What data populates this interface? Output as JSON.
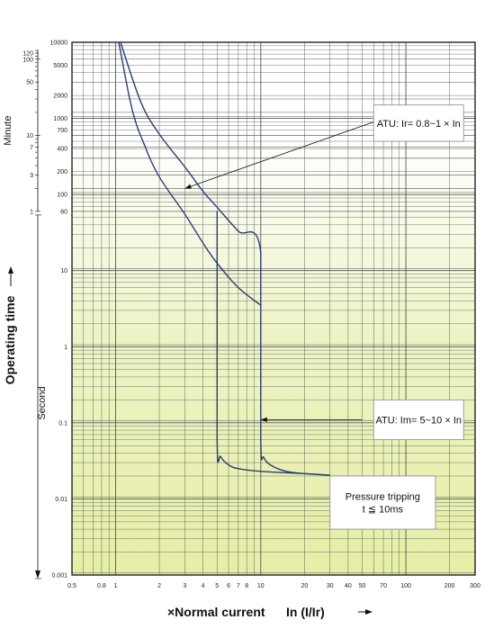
{
  "chart_data": {
    "type": "line",
    "xscale": "log",
    "yscale": "log",
    "xlim": [
      0.5,
      300
    ],
    "ylim": [
      0.001,
      10000
    ],
    "x_ticks": [
      0.5,
      0.8,
      1,
      2,
      3,
      4,
      5,
      6,
      7,
      8,
      10,
      20,
      30,
      40,
      50,
      70,
      100,
      200,
      300
    ],
    "x_tick_labels": [
      "0.5",
      "0.8",
      "1",
      "2",
      "3",
      "4",
      "5",
      "6",
      "7",
      "8",
      "10",
      "20",
      "30",
      "40",
      "50",
      "70",
      "100",
      "200",
      "300"
    ],
    "y_ticks": [
      0.001,
      0.01,
      0.1,
      1,
      10,
      60,
      100,
      200,
      400,
      700,
      1000,
      2000,
      5000,
      10000
    ],
    "y_tick_labels": [
      "0.001",
      "0.01",
      "0.1",
      "1",
      "10",
      "60",
      "100",
      "200",
      "400",
      "700",
      "1000",
      "2000",
      "5000",
      "10000"
    ],
    "minute_ticks": [
      1,
      3,
      7,
      10,
      50,
      100,
      120
    ],
    "minute_tick_labels": [
      "1",
      "3",
      "7",
      "10",
      "50",
      "100",
      "120"
    ],
    "xlabel": "×Normal current",
    "xlabel_unit": "In (I/Ir)",
    "ylabel": "Operating time",
    "ylabel_minute": "Minute",
    "ylabel_second": "Second",
    "grid": true,
    "series": [
      {
        "id": "upper",
        "points": [
          [
            1.08,
            10000
          ],
          [
            1.5,
            1600
          ],
          [
            2,
            620
          ],
          [
            3,
            230
          ],
          [
            4,
            110
          ],
          [
            5,
            68
          ],
          [
            7,
            33
          ],
          [
            10,
            17
          ],
          [
            10,
            0.06
          ],
          [
            10.5,
            0.035
          ],
          [
            12,
            0.027
          ],
          [
            15,
            0.023
          ],
          [
            20,
            0.0215
          ],
          [
            30,
            0.0205
          ]
        ]
      },
      {
        "id": "lower",
        "points": [
          [
            1.05,
            10000
          ],
          [
            1.3,
            1300
          ],
          [
            1.6,
            420
          ],
          [
            2,
            170
          ],
          [
            3,
            55
          ],
          [
            4,
            23
          ],
          [
            5,
            12.5
          ],
          [
            7,
            6
          ],
          [
            10,
            3.5
          ]
        ]
      },
      {
        "id": "lower-instant",
        "points": [
          [
            5,
            60
          ],
          [
            5,
            0.06
          ],
          [
            5.3,
            0.036
          ],
          [
            6,
            0.028
          ],
          [
            7,
            0.025
          ],
          [
            10,
            0.023
          ],
          [
            20,
            0.0215
          ],
          [
            30,
            0.0205
          ]
        ]
      }
    ],
    "annotations": [
      {
        "id": "atu-ir",
        "text": "ATU: Ir= 0.8~1 × In",
        "box": [
          [
            60,
            1500
          ],
          [
            250,
            500
          ]
        ],
        "arrow": [
          [
            60,
            900
          ],
          [
            3,
            120
          ]
        ]
      },
      {
        "id": "atu-im",
        "text": "ATU: Im= 5~10 × In",
        "box": [
          [
            60,
            0.2
          ],
          [
            250,
            0.06
          ]
        ],
        "arrow": [
          [
            50,
            0.11
          ],
          [
            10,
            0.11
          ]
        ]
      },
      {
        "id": "pressure",
        "lines": [
          "Pressure tripping",
          "t ≦ 10ms"
        ],
        "box": [
          [
            30,
            0.02
          ],
          [
            160,
            0.004
          ]
        ]
      }
    ],
    "colors": {
      "curve": "#2a3e74",
      "grid": "#555555",
      "frame": "#222222",
      "fill_top": "#ffffff",
      "fill_bottom": "#e6eea6"
    }
  }
}
